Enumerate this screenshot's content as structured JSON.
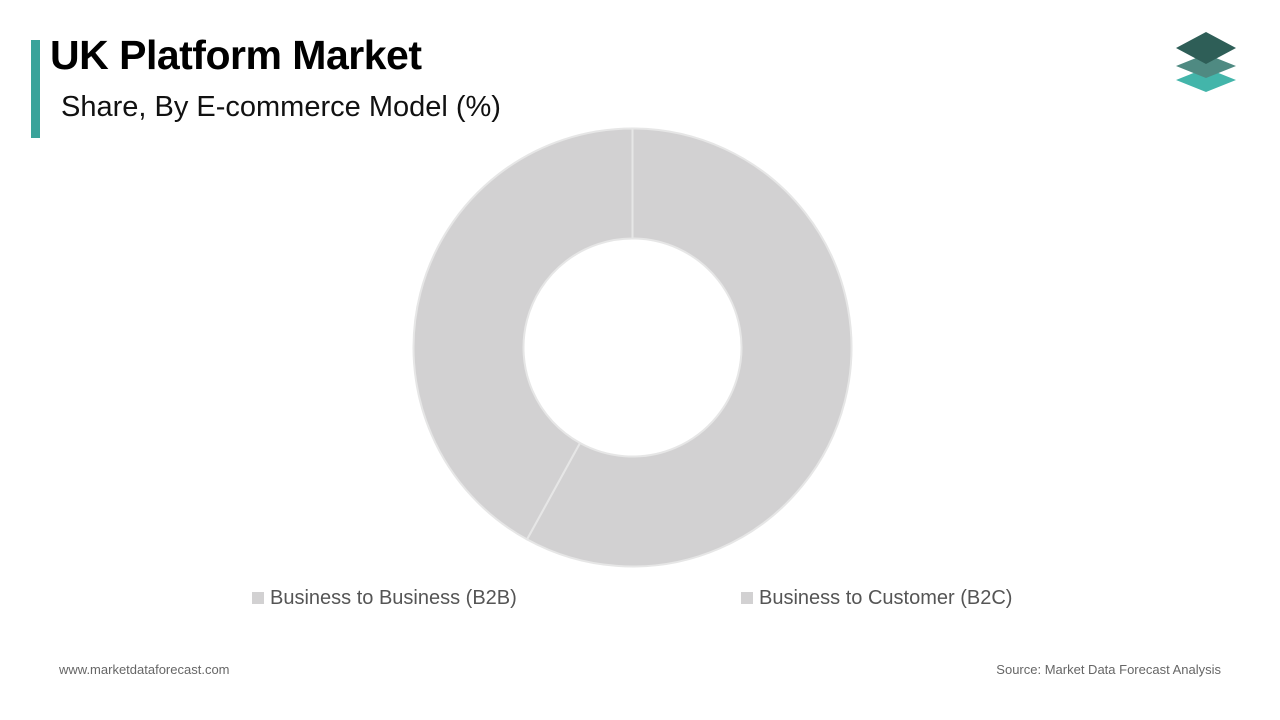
{
  "header": {
    "title": "UK Platform Market",
    "subtitle": "Share, By E-commerce Model (%)"
  },
  "footer": {
    "website": "www.marketdataforecast.com",
    "source": "Source: Market Data Forecast Analysis"
  },
  "colors": {
    "accent": "#3aa39a",
    "slice_fill": "#d2d1d2",
    "slice_border": "#e6e6e6",
    "logo_top": "#2e5e57",
    "logo_mid": "#4f8a82",
    "logo_bottom": "#43b5aa"
  },
  "logo_icon": "stacked-layers-icon",
  "chart_data": {
    "type": "pie",
    "style": "donut",
    "title": "",
    "categories": [
      "Business to Business (B2B)",
      "Business to Customer (B2C)"
    ],
    "values": [
      58,
      42
    ],
    "colors": [
      "#d2d1d2",
      "#d2d1d2"
    ],
    "start_angle": "12 o'clock, clockwise",
    "legend": "bottom"
  }
}
